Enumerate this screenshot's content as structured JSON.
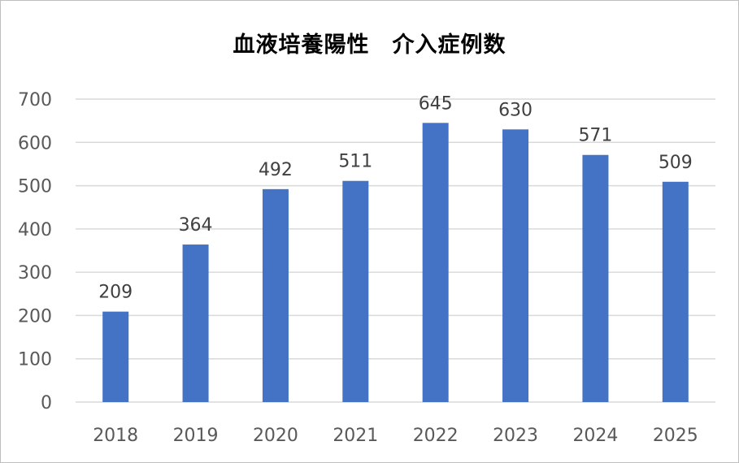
{
  "chart_data": {
    "type": "bar",
    "title": "血液培養陽性　介入症例数",
    "xlabel": "",
    "ylabel": "",
    "categories": [
      "2018",
      "2019",
      "2020",
      "2021",
      "2022",
      "2023",
      "2024",
      "2025"
    ],
    "values": [
      209,
      364,
      492,
      511,
      645,
      630,
      571,
      509
    ],
    "data_labels": [
      "209",
      "364",
      "492",
      "511",
      "645",
      "630",
      "571",
      "509"
    ],
    "ylim": [
      0,
      700
    ],
    "yticks": [
      "0",
      "100",
      "200",
      "300",
      "400",
      "500",
      "600",
      "700"
    ],
    "grid": true,
    "legend": "none",
    "bar_color": "#4472c4",
    "grid_color": "#d9d9d9"
  }
}
